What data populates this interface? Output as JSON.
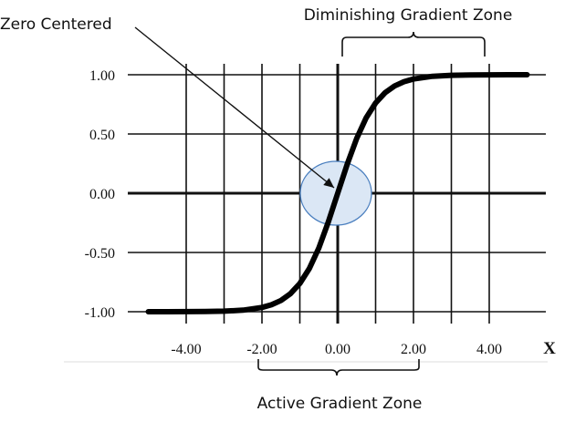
{
  "chart_data": {
    "type": "line",
    "xlabel": "X",
    "ylabel": "",
    "xlim": [
      -5,
      5
    ],
    "ylim": [
      -1,
      1
    ],
    "x_ticks": [
      -4,
      -2,
      0,
      2,
      4
    ],
    "x_tick_labels": [
      "-4.00",
      "-2.00",
      "0.00",
      "2.00",
      "4.00"
    ],
    "y_ticks": [
      1,
      0.5,
      0,
      -0.5,
      -1
    ],
    "y_tick_labels": [
      "1.00",
      "0.50",
      "0.00",
      "-0.50",
      "-1.00"
    ],
    "grid": true,
    "series": [
      {
        "x": [
          -5,
          -4.5,
          -4,
          -3.5,
          -3,
          -2.5,
          -2,
          -1.75,
          -1.5,
          -1.25,
          -1,
          -0.75,
          -0.5,
          -0.25,
          0,
          0.25,
          0.5,
          0.75,
          1,
          1.25,
          1.5,
          1.75,
          2,
          2.5,
          3,
          3.5,
          4,
          4.5,
          5
        ],
        "y": [
          -0.9999,
          -0.9998,
          -0.9993,
          -0.9982,
          -0.9951,
          -0.9866,
          -0.964,
          -0.9414,
          -0.9051,
          -0.8483,
          -0.7616,
          -0.6351,
          -0.4621,
          -0.2449,
          0,
          0.2449,
          0.4621,
          0.6351,
          0.7616,
          0.8483,
          0.9051,
          0.9414,
          0.964,
          0.9866,
          0.9951,
          0.9982,
          0.9993,
          0.9998,
          0.9999
        ],
        "color": "#000000"
      }
    ],
    "annotations": {
      "zero_centered": {
        "text": "Zero Centered",
        "points_to": [
          0,
          0
        ],
        "highlight_color": "#dbe7f5",
        "highlight_stroke": "#4a7fbf"
      },
      "diminishing_zone": {
        "text": "Diminishing Gradient Zone",
        "x_range": [
          0,
          4
        ]
      },
      "active_zone": {
        "text": "Active Gradient Zone",
        "x_range": [
          -2,
          2
        ]
      }
    }
  }
}
